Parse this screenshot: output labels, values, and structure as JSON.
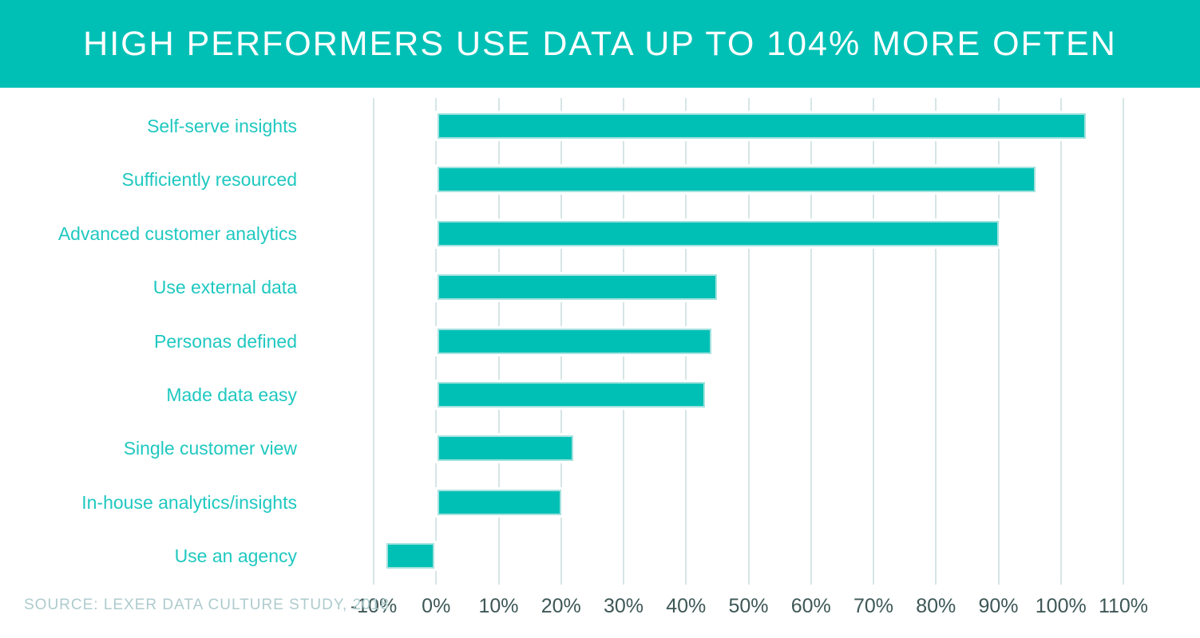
{
  "header": {
    "title": "HIGH PERFORMERS USE DATA UP TO 104% MORE OFTEN"
  },
  "source_note": "SOURCE: LEXER DATA CULTURE STUDY, 2018",
  "colors": {
    "accent_teal": "#00c0b5",
    "bar_fill": "#00c0b5",
    "bar_border": "#a2e2de",
    "category_label_text": "#1fc8c0",
    "axis_tick_text": "#3d5756",
    "gridline": "#d6e5e5",
    "source_text": "#aecbcd",
    "header_text": "#ffffff",
    "background": "#ffffff"
  },
  "chart_data": {
    "type": "bar",
    "orientation": "horizontal",
    "title": "HIGH PERFORMERS USE DATA UP TO 104% MORE OFTEN",
    "categories": [
      "Self-serve insights",
      "Sufficiently resourced",
      "Advanced customer analytics",
      "Use external data",
      "Personas defined",
      "Made data easy",
      "Single customer view",
      "In-house analytics/insights",
      "Use an agency"
    ],
    "values": [
      104,
      96,
      90,
      45,
      44,
      43,
      22,
      20,
      -8
    ],
    "value_unit": "%",
    "xlim": [
      -10,
      110
    ],
    "x_ticks": [
      -10,
      0,
      10,
      20,
      30,
      40,
      50,
      60,
      70,
      80,
      90,
      100,
      110
    ],
    "x_tick_labels": [
      "-10%",
      "0%",
      "10%",
      "20%",
      "30%",
      "40%",
      "50%",
      "60%",
      "70%",
      "80%",
      "90%",
      "100%",
      "110%"
    ],
    "grid": true,
    "legend": false,
    "source": "SOURCE: LEXER DATA CULTURE STUDY, 2018"
  }
}
